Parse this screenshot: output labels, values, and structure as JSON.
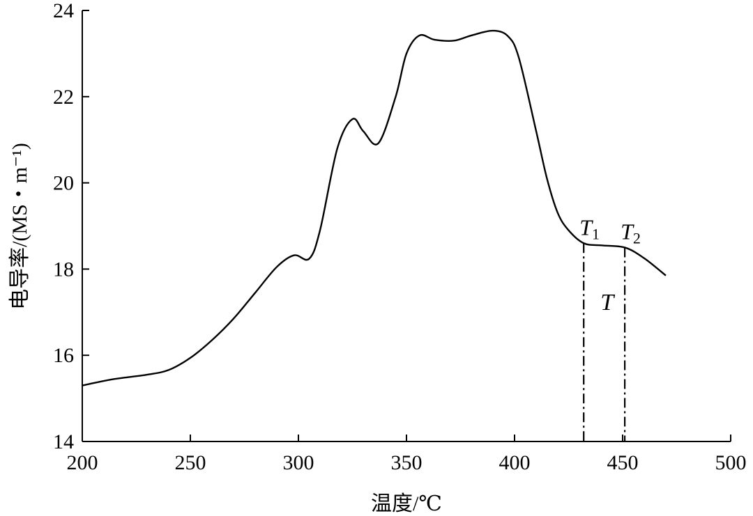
{
  "chart_data": {
    "type": "line",
    "title": "",
    "xlabel": "温度/℃",
    "ylabel": "电导率/(MS・m⁻¹)",
    "xlim": [
      200,
      500
    ],
    "ylim": [
      14,
      24
    ],
    "x_ticks": [
      "200",
      "250",
      "300",
      "350",
      "400",
      "450",
      "500"
    ],
    "y_ticks": [
      "14",
      "16",
      "18",
      "20",
      "22",
      "24"
    ],
    "grid": false,
    "line_color": "#000000",
    "series": [
      {
        "x": [
          200,
          215,
          230,
          240,
          250,
          260,
          270,
          280,
          290,
          298,
          305,
          310,
          318,
          325,
          330,
          337,
          345,
          350,
          356,
          363,
          372,
          380,
          390,
          397,
          402,
          410,
          415,
          420,
          425,
          432,
          440,
          451,
          460,
          470
        ],
        "y": [
          15.3,
          15.45,
          15.55,
          15.66,
          15.94,
          16.35,
          16.85,
          17.45,
          18.05,
          18.32,
          18.24,
          18.9,
          20.8,
          21.48,
          21.2,
          20.92,
          22.0,
          23.0,
          23.42,
          23.32,
          23.3,
          23.42,
          23.53,
          23.4,
          22.9,
          21.2,
          20.1,
          19.3,
          18.9,
          18.6,
          18.55,
          18.5,
          18.25,
          17.85
        ]
      }
    ],
    "annotations": [
      {
        "label": "T",
        "sub": "1",
        "x": 432
      },
      {
        "label": "T",
        "sub": "2",
        "x": 451
      },
      {
        "label": "T",
        "sub": "",
        "between": [
          432,
          451
        ]
      }
    ]
  }
}
